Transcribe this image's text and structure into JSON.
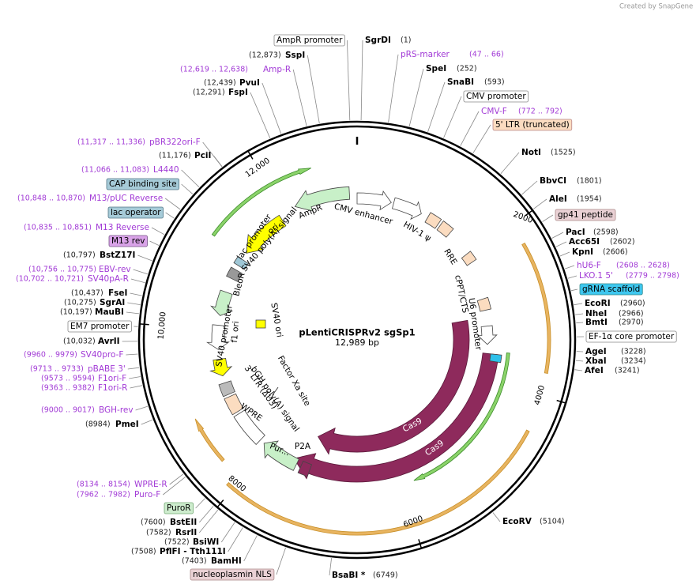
{
  "header": {
    "credit": "Created by SnapGene"
  },
  "map": {
    "name": "pLentiCRISPRv2 sgSp1",
    "size": "12,989 bp"
  },
  "ring_ticks": [
    "2000",
    "4000",
    "6000",
    "8000",
    "10,000",
    "12,000"
  ],
  "enzymes": [
    {
      "name": "SgrDI",
      "position": "(1)"
    },
    {
      "name": "SspI",
      "position": "(12,873)"
    },
    {
      "name": "SpeI",
      "position": "(252)"
    },
    {
      "name": "PvuI",
      "position": "(12,439)"
    },
    {
      "name": "SnaBI",
      "position": "(593)"
    },
    {
      "name": "FspI",
      "position": "(12,291)"
    },
    {
      "name": "NotI",
      "position": "(1525)"
    },
    {
      "name": "PciI",
      "position": "(11,176)"
    },
    {
      "name": "BbvCI",
      "position": "(1801)"
    },
    {
      "name": "AleI",
      "position": "(1954)"
    },
    {
      "name": "PacI",
      "position": "(2598)"
    },
    {
      "name": "Acc65I",
      "position": "(2602)"
    },
    {
      "name": "KpnI",
      "position": "(2606)"
    },
    {
      "name": "BstZ17I",
      "position": "(10,797)"
    },
    {
      "name": "FseI",
      "position": "(10,437)"
    },
    {
      "name": "SgrAI",
      "position": "(10,275)"
    },
    {
      "name": "EcoRI",
      "position": "(2960)"
    },
    {
      "name": "MauBI",
      "position": "(10,197)"
    },
    {
      "name": "NheI",
      "position": "(2966)"
    },
    {
      "name": "BmtI",
      "position": "(2970)"
    },
    {
      "name": "AvrII",
      "position": "(10,032)"
    },
    {
      "name": "AgeI",
      "position": "(3228)"
    },
    {
      "name": "XbaI",
      "position": "(3234)"
    },
    {
      "name": "AfeI",
      "position": "(3241)"
    },
    {
      "name": "PmeI",
      "position": "(8984)"
    },
    {
      "name": "EcoRV",
      "position": "(5104)"
    },
    {
      "name": "BstEII",
      "position": "(7600)"
    },
    {
      "name": "RsrII",
      "position": "(7582)"
    },
    {
      "name": "BsiWI",
      "position": "(7522)"
    },
    {
      "name": "PflFI - Tth111I",
      "position": "(7508)"
    },
    {
      "name": "BamHI",
      "position": "(7403)"
    },
    {
      "name": "BsaBI *",
      "position": "(6749)"
    }
  ],
  "primers": [
    {
      "name": "pRS-marker",
      "range": "(47 .. 66)"
    },
    {
      "name": "Amp-R",
      "range": "(12,619 .. 12,638)"
    },
    {
      "name": "CMV-F",
      "range": "(772 .. 792)"
    },
    {
      "name": "pBR322ori-F",
      "range": "(11,317 .. 11,336)"
    },
    {
      "name": "L4440",
      "range": "(11,066 .. 11,083)"
    },
    {
      "name": "M13/pUC Reverse",
      "range": "(10,848 .. 10,870)"
    },
    {
      "name": "M13 Reverse",
      "range": "(10,835 .. 10,851)"
    },
    {
      "name": "hU6-F",
      "range": "(2608 .. 2628)"
    },
    {
      "name": "EBV-rev",
      "range": "(10,756 .. 10,775)"
    },
    {
      "name": "LKO.1 5'",
      "range": "(2779 .. 2798)"
    },
    {
      "name": "SV40pA-R",
      "range": "(10,702 .. 10,721)"
    },
    {
      "name": "SV40pro-F",
      "range": "(9960 .. 9979)"
    },
    {
      "name": "pBABE 3'",
      "range": "(9713 .. 9733)"
    },
    {
      "name": "F1ori-F",
      "range": "(9573 .. 9594)"
    },
    {
      "name": "F1ori-R",
      "range": "(9363 .. 9382)"
    },
    {
      "name": "BGH-rev",
      "range": "(9000 .. 9017)"
    },
    {
      "name": "WPRE-R",
      "range": "(8134 .. 8154)"
    },
    {
      "name": "Puro-F",
      "range": "(7962 .. 7982)"
    }
  ],
  "feature_boxes": [
    "AmpR promoter",
    "CMV promoter",
    "5' LTR (truncated)",
    "CAP binding site",
    "lac operator",
    "gp41 peptide",
    "M13 rev",
    "gRNA scaffold",
    "EM7 promoter",
    "EF-1α core promoter",
    "PuroR",
    "nucleoplasmin NLS"
  ],
  "features": [
    "CMV enhancer",
    "HIV-1 ψ",
    "RRE",
    "cPPT/CTS",
    "U6 promoter",
    "Cas9",
    "Cas9",
    "P2A",
    "Pur...",
    "WPRE",
    "bGH poly(A) signal",
    "3' LTR (ΔU3)",
    "f1 ori",
    "SV40 promoter",
    "BleoR",
    "SV40 ori",
    "Factor Xa site",
    "lac promoter",
    "SV40 poly(A) signal",
    "ori",
    "AmpR"
  ]
}
